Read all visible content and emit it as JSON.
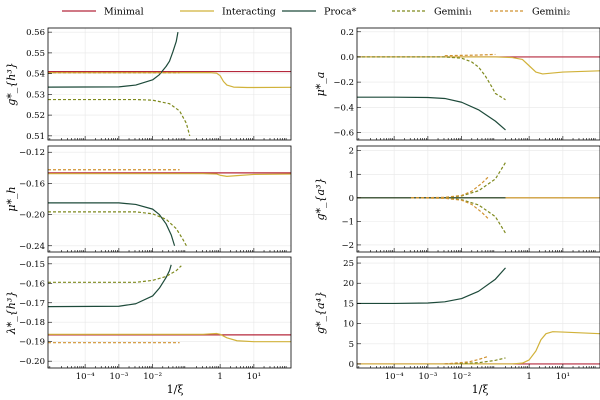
{
  "chart_data": {
    "type": "line",
    "xaxis": {
      "label": "1/ξ",
      "scale": "log10",
      "range_log10": [
        -5.1,
        2.1
      ],
      "ticks_log10": [
        -4,
        -3,
        -2,
        0,
        1
      ],
      "tick_labels": [
        "10⁻⁴",
        "10⁻³",
        "10⁻²",
        "1",
        "10¹"
      ]
    },
    "legend": {
      "placement": "top",
      "entries": [
        {
          "name": "Minimal",
          "color": "#b5283c",
          "dash": "solid"
        },
        {
          "name": "Interacting",
          "color": "#d1b23a",
          "dash": "solid"
        },
        {
          "name": "Proca*",
          "color": "#1d4a3a",
          "dash": "solid"
        },
        {
          "name": "Gemini₁",
          "color": "#7f8a1e",
          "dash": "dashed"
        },
        {
          "name": "Gemini₂",
          "color": "#d09230",
          "dash": "dashed"
        }
      ]
    },
    "panels": [
      {
        "id": "g_h3",
        "ylabel": "g*_{h³}",
        "ylim": [
          0.508,
          0.562
        ],
        "yticks": [
          0.51,
          0.52,
          0.53,
          0.54,
          0.55,
          0.56
        ],
        "ytick_labels": [
          "0.51",
          "0.52",
          "0.53",
          "0.54",
          "0.55",
          "0.56"
        ],
        "series": [
          {
            "name": "Minimal",
            "points": [
              [
                -5.1,
                0.541
              ],
              [
                2.1,
                0.541
              ]
            ]
          },
          {
            "name": "Interacting",
            "points": [
              [
                -5.1,
                0.5405
              ],
              [
                -1,
                0.5405
              ],
              [
                -0.3,
                0.5405
              ],
              [
                -0.1,
                0.5402
              ],
              [
                0,
                0.539
              ],
              [
                0.1,
                0.5362
              ],
              [
                0.2,
                0.5345
              ],
              [
                0.4,
                0.5335
              ],
              [
                0.8,
                0.5333
              ],
              [
                2.1,
                0.5334
              ]
            ]
          },
          {
            "name": "Proca*",
            "points": [
              [
                -5.1,
                0.5335
              ],
              [
                -3,
                0.5336
              ],
              [
                -2.5,
                0.5345
              ],
              [
                -2,
                0.537
              ],
              [
                -1.8,
                0.5395
              ],
              [
                -1.6,
                0.5435
              ],
              [
                -1.5,
                0.546
              ],
              [
                -1.4,
                0.5505
              ],
              [
                -1.3,
                0.5555
              ],
              [
                -1.25,
                0.56
              ]
            ]
          },
          {
            "name": "Gemini₁",
            "points": [
              [
                -5.1,
                0.5275
              ],
              [
                -2.5,
                0.5275
              ],
              [
                -2,
                0.5272
              ],
              [
                -1.5,
                0.5255
              ],
              [
                -1.2,
                0.522
              ],
              [
                -1,
                0.516
              ],
              [
                -0.9,
                0.51
              ]
            ]
          },
          {
            "name": "Gemini₂",
            "points": [
              [
                -5.1,
                0.5405
              ],
              [
                -2,
                0.5405
              ],
              [
                -1.2,
                0.5405
              ]
            ]
          }
        ]
      },
      {
        "id": "mu_h",
        "ylabel": "μ*_h",
        "ylim": [
          -0.248,
          -0.112
        ],
        "yticks": [
          -0.12,
          -0.16,
          -0.2,
          -0.24
        ],
        "ytick_labels": [
          "−0.12",
          "−0.16",
          "−0.20",
          "−0.24"
        ],
        "series": [
          {
            "name": "Minimal",
            "points": [
              [
                -5.1,
                -0.1465
              ],
              [
                2.1,
                -0.1465
              ]
            ]
          },
          {
            "name": "Interacting",
            "points": [
              [
                -5.1,
                -0.1475
              ],
              [
                -0.5,
                -0.1475
              ],
              [
                -0.1,
                -0.148
              ],
              [
                0,
                -0.1495
              ],
              [
                0.2,
                -0.151
              ],
              [
                0.5,
                -0.15
              ],
              [
                1,
                -0.1485
              ],
              [
                2.1,
                -0.148
              ]
            ]
          },
          {
            "name": "Proca*",
            "points": [
              [
                -5.1,
                -0.185
              ],
              [
                -3,
                -0.185
              ],
              [
                -2.5,
                -0.187
              ],
              [
                -2,
                -0.193
              ],
              [
                -1.8,
                -0.2
              ],
              [
                -1.6,
                -0.212
              ],
              [
                -1.45,
                -0.226
              ],
              [
                -1.35,
                -0.24
              ]
            ]
          },
          {
            "name": "Gemini₁",
            "points": [
              [
                -5.1,
                -0.1965
              ],
              [
                -2.5,
                -0.1965
              ],
              [
                -2,
                -0.199
              ],
              [
                -1.6,
                -0.206
              ],
              [
                -1.3,
                -0.218
              ],
              [
                -1.1,
                -0.232
              ],
              [
                -1,
                -0.24
              ]
            ]
          },
          {
            "name": "Gemini₂",
            "points": [
              [
                -5.1,
                -0.1425
              ],
              [
                -1.2,
                -0.1425
              ]
            ]
          }
        ]
      },
      {
        "id": "lambda_h3",
        "ylabel": "λ*_{h³}",
        "ylim": [
          -0.2035,
          -0.1465
        ],
        "yticks": [
          -0.15,
          -0.16,
          -0.17,
          -0.18,
          -0.19,
          -0.2
        ],
        "ytick_labels": [
          "−0.15",
          "−0.16",
          "−0.17",
          "−0.18",
          "−0.19",
          "−0.20"
        ],
        "series": [
          {
            "name": "Minimal",
            "points": [
              [
                -5.1,
                -0.1865
              ],
              [
                2.1,
                -0.1865
              ]
            ]
          },
          {
            "name": "Interacting",
            "points": [
              [
                -5.1,
                -0.1862
              ],
              [
                -0.5,
                -0.1862
              ],
              [
                -0.1,
                -0.1858
              ],
              [
                0,
                -0.1862
              ],
              [
                0.2,
                -0.188
              ],
              [
                0.5,
                -0.1895
              ],
              [
                1,
                -0.19
              ],
              [
                2.1,
                -0.19
              ]
            ]
          },
          {
            "name": "Proca*",
            "points": [
              [
                -5.1,
                -0.172
              ],
              [
                -3,
                -0.1718
              ],
              [
                -2.5,
                -0.1705
              ],
              [
                -2,
                -0.1665
              ],
              [
                -1.8,
                -0.1625
              ],
              [
                -1.6,
                -0.157
              ],
              [
                -1.5,
                -0.1535
              ],
              [
                -1.45,
                -0.1505
              ]
            ]
          },
          {
            "name": "Gemini₁",
            "points": [
              [
                -5.1,
                -0.1595
              ],
              [
                -2.5,
                -0.1595
              ],
              [
                -2,
                -0.1585
              ],
              [
                -1.6,
                -0.1565
              ],
              [
                -1.3,
                -0.1535
              ],
              [
                -1.15,
                -0.151
              ]
            ]
          },
          {
            "name": "Gemini₂",
            "points": [
              [
                -5.1,
                -0.1905
              ],
              [
                -1.2,
                -0.1905
              ]
            ]
          }
        ]
      },
      {
        "id": "mu_a",
        "ylabel": "μ*_a",
        "ylim": [
          -0.66,
          0.23
        ],
        "yticks": [
          0.2,
          0,
          -0.2,
          -0.4,
          -0.6
        ],
        "ytick_labels": [
          "0.2",
          "0.0",
          "−0.2",
          "−0.4",
          "−0.6"
        ],
        "series": [
          {
            "name": "Minimal",
            "points": [
              [
                -5.1,
                0
              ],
              [
                2.1,
                0
              ]
            ]
          },
          {
            "name": "Interacting",
            "points": [
              [
                -5.1,
                0
              ],
              [
                -1,
                0
              ],
              [
                -0.5,
                -0.005
              ],
              [
                -0.2,
                -0.02
              ],
              [
                0,
                -0.07
              ],
              [
                0.2,
                -0.12
              ],
              [
                0.4,
                -0.135
              ],
              [
                0.6,
                -0.13
              ],
              [
                1,
                -0.12
              ],
              [
                2.1,
                -0.11
              ]
            ]
          },
          {
            "name": "Proca*",
            "points": [
              [
                -5.1,
                -0.32
              ],
              [
                -4,
                -0.32
              ],
              [
                -3,
                -0.322
              ],
              [
                -2.5,
                -0.33
              ],
              [
                -2,
                -0.36
              ],
              [
                -1.5,
                -0.42
              ],
              [
                -1,
                -0.51
              ],
              [
                -0.7,
                -0.58
              ]
            ]
          },
          {
            "name": "Gemini₁",
            "points": [
              [
                -5.1,
                0
              ],
              [
                -2.5,
                0
              ],
              [
                -2,
                -0.01
              ],
              [
                -1.7,
                -0.04
              ],
              [
                -1.5,
                -0.08
              ],
              [
                -1.3,
                -0.15
              ],
              [
                -1.1,
                -0.24
              ],
              [
                -1,
                -0.29
              ],
              [
                -0.7,
                -0.34
              ]
            ]
          },
          {
            "name": "Gemini₂",
            "points": [
              [
                -2.5,
                0.01
              ],
              [
                -1.5,
                0.015
              ],
              [
                -1,
                0.02
              ]
            ]
          }
        ]
      },
      {
        "id": "g_a3",
        "ylabel": "g*_{a³}",
        "ylim": [
          -2.3,
          2.2
        ],
        "yticks": [
          2,
          1,
          0,
          -1,
          -2
        ],
        "ytick_labels": [
          "2",
          "1",
          "0",
          "−1",
          "−2"
        ],
        "series": [
          {
            "name": "Minimal",
            "points": [
              [
                -5.1,
                0
              ],
              [
                2.1,
                0
              ]
            ]
          },
          {
            "name": "Interacting",
            "points": [
              [
                -5.1,
                0
              ],
              [
                2.1,
                0
              ]
            ]
          },
          {
            "name": "Proca*",
            "points": [
              [
                -5.1,
                0
              ],
              [
                -0.7,
                0
              ]
            ]
          },
          {
            "name": "Gemini₁",
            "points": [
              [
                -3.5,
                0
              ],
              [
                -2.5,
                0.01
              ],
              [
                -2,
                0.08
              ],
              [
                -1.5,
                0.3
              ],
              [
                -1,
                0.8
              ],
              [
                -0.7,
                1.5
              ]
            ]
          },
          {
            "name": "Gemini₁",
            "points": [
              [
                -3.5,
                0
              ],
              [
                -2.5,
                -0.01
              ],
              [
                -2,
                -0.08
              ],
              [
                -1.5,
                -0.3
              ],
              [
                -1,
                -0.8
              ],
              [
                -0.7,
                -1.5
              ]
            ]
          },
          {
            "name": "Gemini₂",
            "points": [
              [
                -3.5,
                0
              ],
              [
                -2.5,
                0.02
              ],
              [
                -2,
                0.1
              ],
              [
                -1.7,
                0.28
              ],
              [
                -1.4,
                0.62
              ],
              [
                -1.2,
                0.9
              ]
            ]
          },
          {
            "name": "Gemini₂",
            "points": [
              [
                -3.5,
                0
              ],
              [
                -2.5,
                -0.02
              ],
              [
                -2,
                -0.1
              ],
              [
                -1.7,
                -0.28
              ],
              [
                -1.4,
                -0.62
              ],
              [
                -1.2,
                -0.9
              ]
            ]
          }
        ]
      },
      {
        "id": "g_a4",
        "ylabel": "g*_{a⁴}",
        "ylim": [
          -1,
          26.5
        ],
        "yticks": [
          25,
          20,
          15,
          10,
          5,
          0
        ],
        "ytick_labels": [
          "25",
          "20",
          "15",
          "10",
          "5",
          "0"
        ],
        "series": [
          {
            "name": "Minimal",
            "points": [
              [
                -5.1,
                0
              ],
              [
                2.1,
                0
              ]
            ]
          },
          {
            "name": "Interacting",
            "points": [
              [
                -5.1,
                0
              ],
              [
                -0.5,
                0
              ],
              [
                -0.2,
                0.2
              ],
              [
                0,
                1
              ],
              [
                0.2,
                3.2
              ],
              [
                0.35,
                6
              ],
              [
                0.5,
                7.5
              ],
              [
                0.7,
                8
              ],
              [
                1,
                7.9
              ],
              [
                2.1,
                7.5
              ]
            ]
          },
          {
            "name": "Proca*",
            "points": [
              [
                -5.1,
                15
              ],
              [
                -4,
                15
              ],
              [
                -3,
                15.1
              ],
              [
                -2.5,
                15.4
              ],
              [
                -2,
                16.2
              ],
              [
                -1.5,
                18
              ],
              [
                -1,
                21
              ],
              [
                -0.7,
                23.8
              ]
            ]
          },
          {
            "name": "Gemini₁",
            "points": [
              [
                -2.5,
                0
              ],
              [
                -1.5,
                0.3
              ],
              [
                -1,
                0.9
              ],
              [
                -0.7,
                1.5
              ]
            ]
          },
          {
            "name": "Gemini₂",
            "points": [
              [
                -2.5,
                0
              ],
              [
                -1.8,
                0.5
              ],
              [
                -1.5,
                1.1
              ],
              [
                -1.2,
                1.9
              ]
            ]
          }
        ]
      }
    ]
  }
}
